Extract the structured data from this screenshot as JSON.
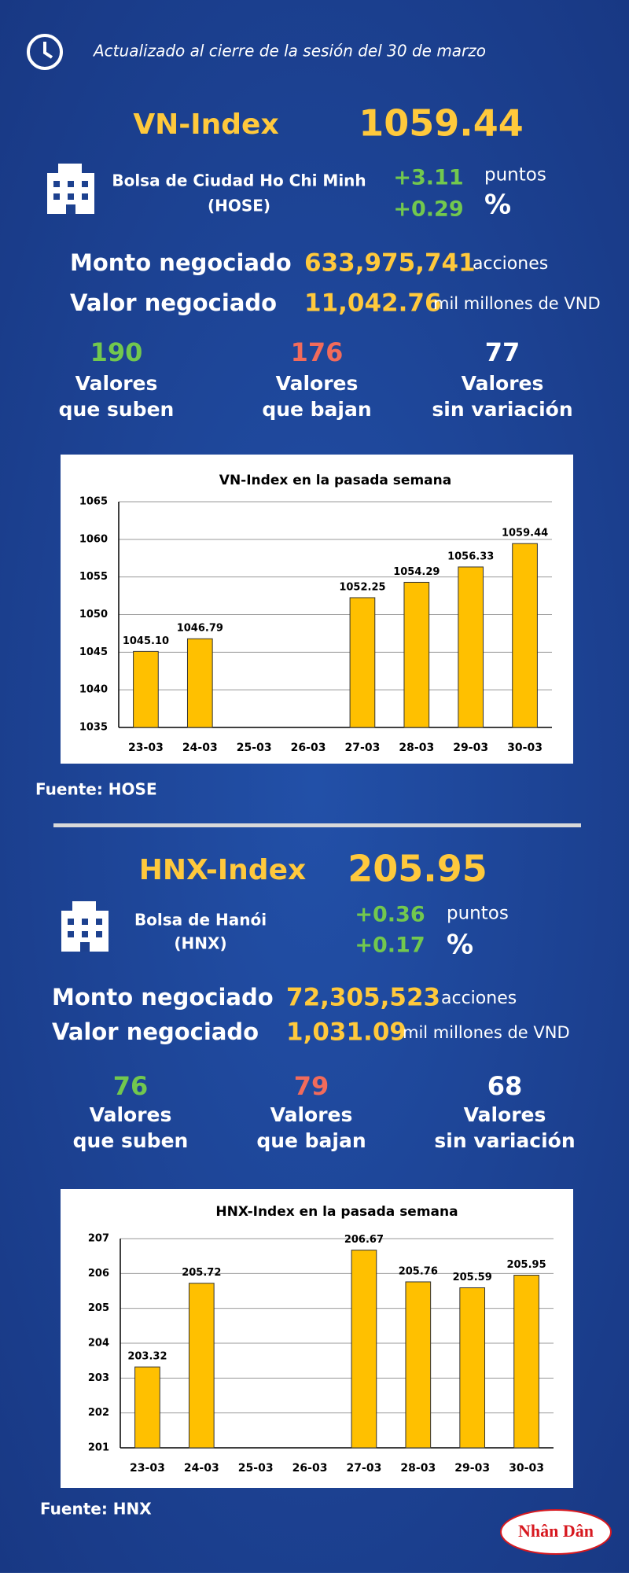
{
  "header": {
    "update": "Actualizado al cierre de la sesión del 30 de marzo"
  },
  "sections": [
    {
      "index_name": "VN-Index",
      "index_value": "1059.44",
      "exchange": [
        "Bolsa de Ciudad Ho Chi Minh",
        "(HOSE)"
      ],
      "change_points": "+3.11",
      "points_unit": "puntos",
      "change_percent": "+0.29",
      "percent_unit": "%",
      "volume_label": "Monto negociado",
      "volume": "633,975,741",
      "volume_unit": "acciones",
      "value_label": "Valor negociado",
      "value": "11,042.76",
      "value_unit": "mil millones de VND",
      "stats": [
        {
          "count": "190",
          "label": [
            "Valores",
            "que suben"
          ]
        },
        {
          "count": "176",
          "label": [
            "Valores",
            "que bajan"
          ]
        },
        {
          "count": "77",
          "label": [
            "Valores",
            "sin variación"
          ]
        }
      ],
      "source": "Fuente: HOSE"
    },
    {
      "index_name": "HNX-Index",
      "index_value": "205.95",
      "exchange": [
        "Bolsa de Hanói",
        "(HNX)"
      ],
      "change_points": "+0.36",
      "points_unit": "puntos",
      "change_percent": "+0.17",
      "percent_unit": "%",
      "volume_label": "Monto negociado",
      "volume": "72,305,523",
      "volume_unit": "acciones",
      "value_label": "Valor negociado",
      "value": "1,031.09",
      "value_unit": "mil millones de VND",
      "stats": [
        {
          "count": "76",
          "label": [
            "Valores",
            "que suben"
          ]
        },
        {
          "count": "79",
          "label": [
            "Valores",
            "que bajan"
          ]
        },
        {
          "count": "68",
          "label": [
            "Valores",
            "sin variación"
          ]
        }
      ],
      "source": "Fuente:  HNX"
    }
  ],
  "chart_data": [
    {
      "type": "bar",
      "title": "VN-Index en la pasada semana",
      "categories": [
        "23-03",
        "24-03",
        "25-03",
        "26-03",
        "27-03",
        "28-03",
        "29-03",
        "30-03"
      ],
      "values": [
        1045.1,
        1046.79,
        null,
        null,
        1052.25,
        1054.29,
        1056.33,
        1059.44
      ],
      "value_labels": [
        "1045.10",
        "1046.79",
        null,
        null,
        "1052.25",
        "1054.29",
        "1056.33",
        "1059.44"
      ],
      "color": "#ffc000",
      "ylim": [
        1035,
        1065
      ],
      "yticks": [
        1035,
        1040,
        1045,
        1050,
        1055,
        1060,
        1065
      ],
      "grid": true
    },
    {
      "type": "bar",
      "title": "HNX-Index en la pasada semana",
      "categories": [
        "23-03",
        "24-03",
        "25-03",
        "26-03",
        "27-03",
        "28-03",
        "29-03",
        "30-03"
      ],
      "values": [
        203.32,
        205.72,
        null,
        null,
        206.67,
        205.76,
        205.59,
        205.95
      ],
      "color": "#ffc000",
      "ylim": [
        201,
        207
      ],
      "yticks": [
        201,
        202,
        203,
        204,
        205,
        206,
        207
      ],
      "grid": true
    }
  ],
  "logo": "Nhân Dân"
}
